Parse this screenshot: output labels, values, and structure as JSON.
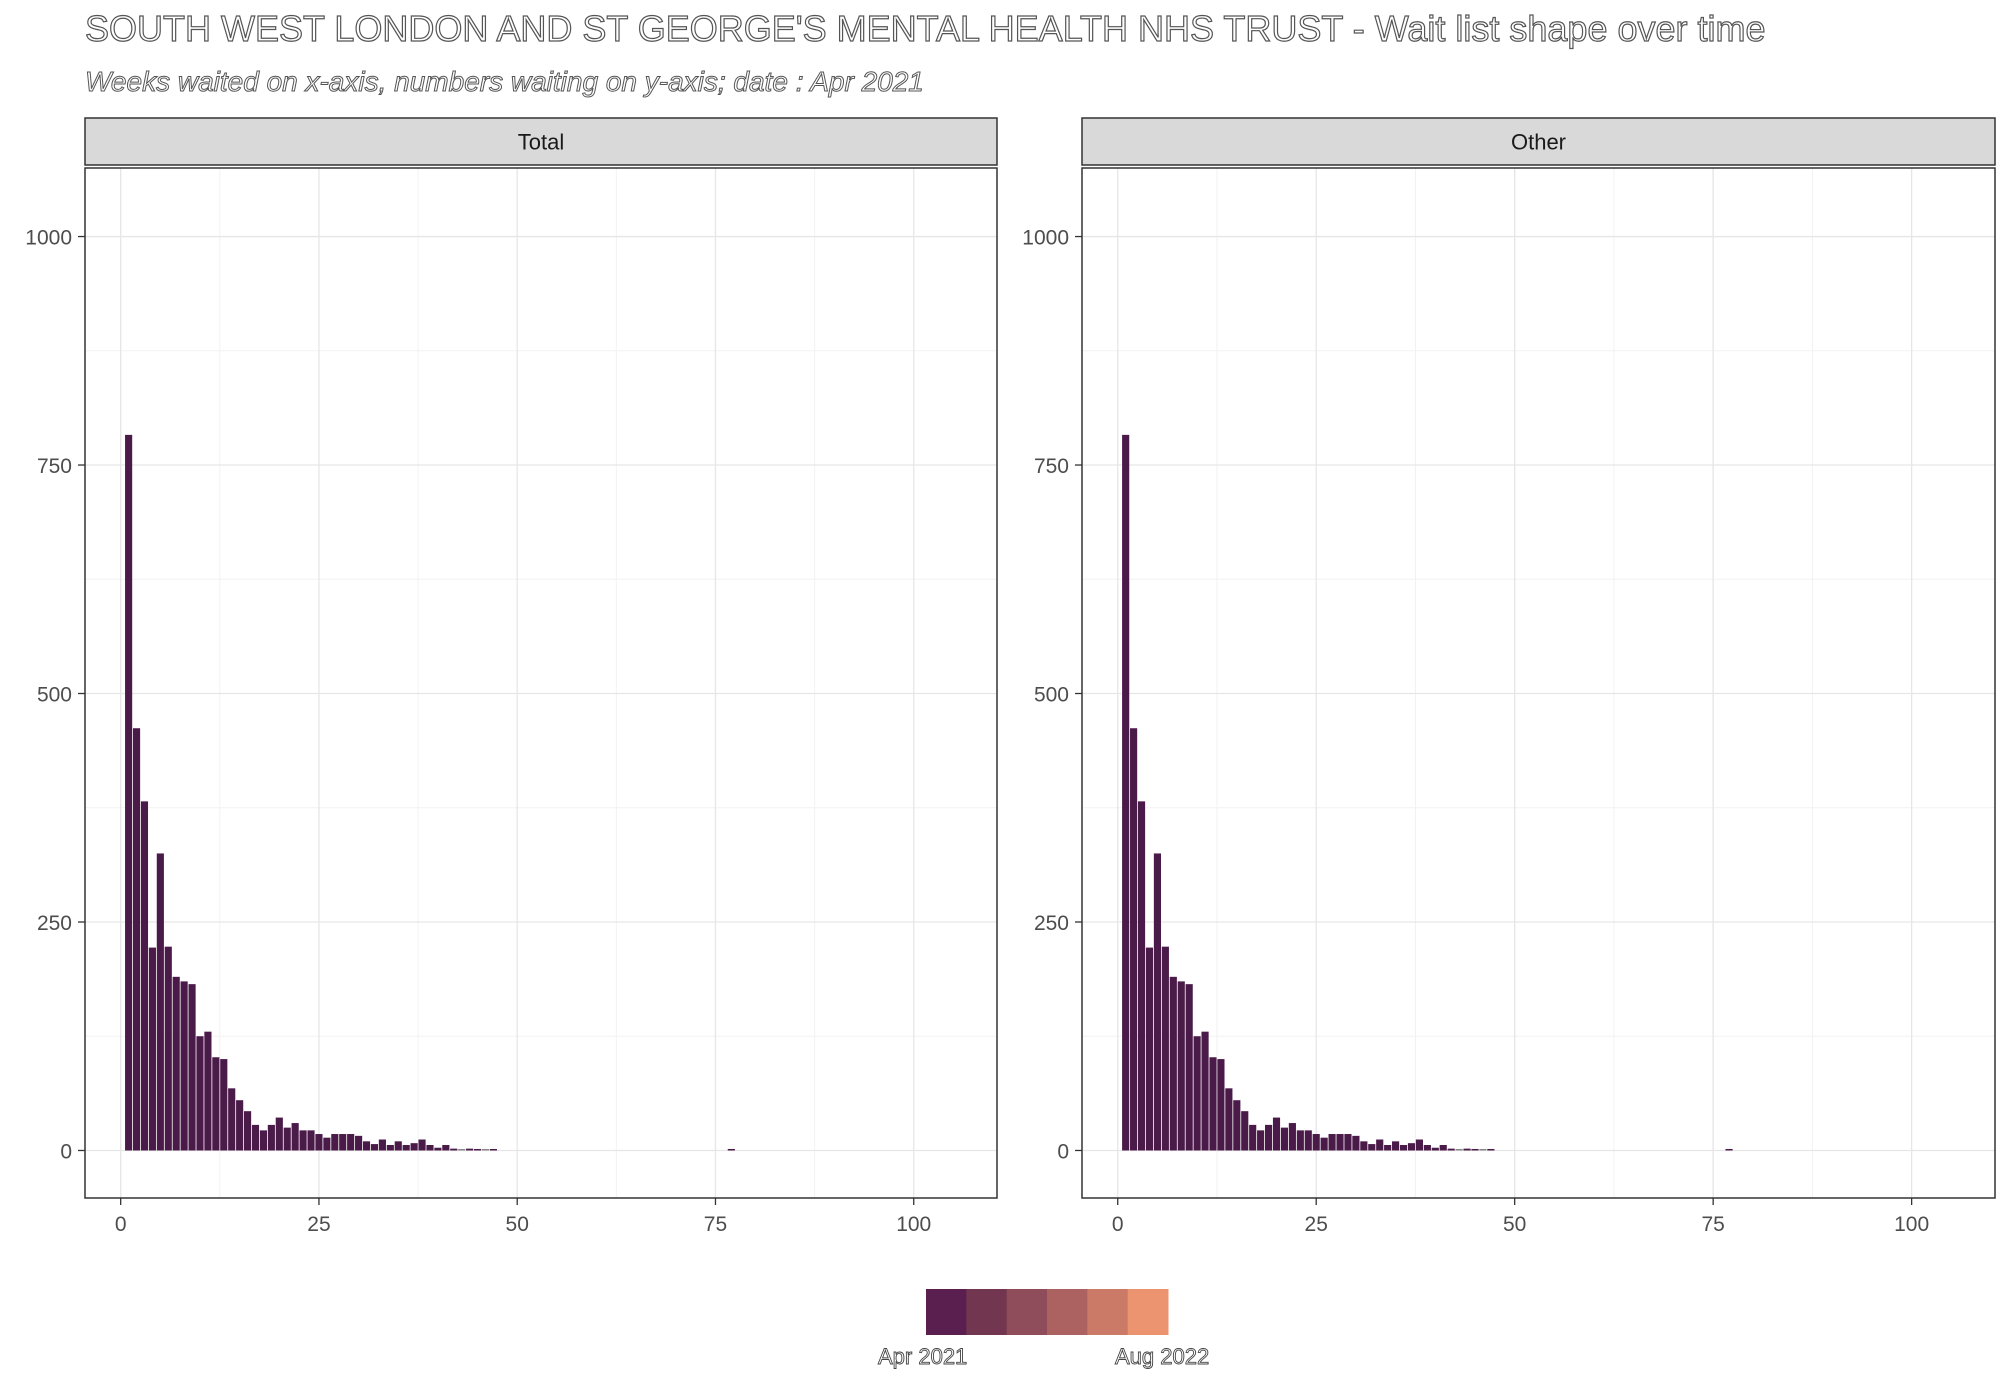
{
  "title": "SOUTH WEST LONDON AND ST GEORGE'S MENTAL HEALTH NHS TRUST - Wait list shape over time",
  "subtitle": "Weeks waited on x-axis, numbers waiting on y-axis; date : Apr 2021",
  "legend": {
    "labels": [
      "Apr 2021",
      "Aug 2022"
    ],
    "colors": [
      "#5a1f4e",
      "#723650",
      "#8f4c5a",
      "#ab6260",
      "#cc7a68",
      "#ec9470"
    ]
  },
  "chart_data": [
    {
      "type": "bar",
      "panel": "Total",
      "color": "#4a1a48",
      "xlim": [
        -4.5,
        110.5
      ],
      "ylim": [
        -52,
        1075
      ],
      "xticks": [
        0,
        25,
        50,
        75,
        100
      ],
      "yticks": [
        0,
        250,
        500,
        750,
        1000
      ],
      "grid": true,
      "x": [
        1,
        2,
        3,
        4,
        5,
        6,
        7,
        8,
        9,
        10,
        11,
        12,
        13,
        14,
        15,
        16,
        17,
        18,
        19,
        20,
        21,
        22,
        23,
        24,
        25,
        26,
        27,
        28,
        29,
        30,
        31,
        32,
        33,
        34,
        35,
        36,
        37,
        38,
        39,
        40,
        41,
        42,
        43,
        44,
        45,
        46,
        47,
        77
      ],
      "values": [
        783,
        462,
        382,
        222,
        325,
        223,
        190,
        185,
        182,
        125,
        130,
        102,
        100,
        68,
        55,
        43,
        28,
        22,
        28,
        36,
        25,
        30,
        22,
        22,
        18,
        14,
        18,
        18,
        18,
        16,
        10,
        7,
        12,
        6,
        10,
        6,
        8,
        12,
        6,
        3,
        6,
        2,
        0,
        2,
        1,
        0,
        1,
        1
      ]
    },
    {
      "type": "bar",
      "panel": "Other",
      "color": "#4a1a48",
      "xlim": [
        -4.5,
        110.5
      ],
      "ylim": [
        -52,
        1075
      ],
      "xticks": [
        0,
        25,
        50,
        75,
        100
      ],
      "yticks": [
        0,
        250,
        500,
        750,
        1000
      ],
      "grid": true,
      "x": [
        1,
        2,
        3,
        4,
        5,
        6,
        7,
        8,
        9,
        10,
        11,
        12,
        13,
        14,
        15,
        16,
        17,
        18,
        19,
        20,
        21,
        22,
        23,
        24,
        25,
        26,
        27,
        28,
        29,
        30,
        31,
        32,
        33,
        34,
        35,
        36,
        37,
        38,
        39,
        40,
        41,
        42,
        43,
        44,
        45,
        46,
        47,
        77
      ],
      "values": [
        783,
        462,
        382,
        222,
        325,
        223,
        190,
        185,
        182,
        125,
        130,
        102,
        100,
        68,
        55,
        43,
        28,
        22,
        28,
        36,
        25,
        30,
        22,
        22,
        18,
        14,
        18,
        18,
        18,
        16,
        10,
        7,
        12,
        6,
        10,
        6,
        8,
        12,
        6,
        3,
        6,
        2,
        0,
        2,
        1,
        0,
        1,
        1
      ]
    }
  ]
}
